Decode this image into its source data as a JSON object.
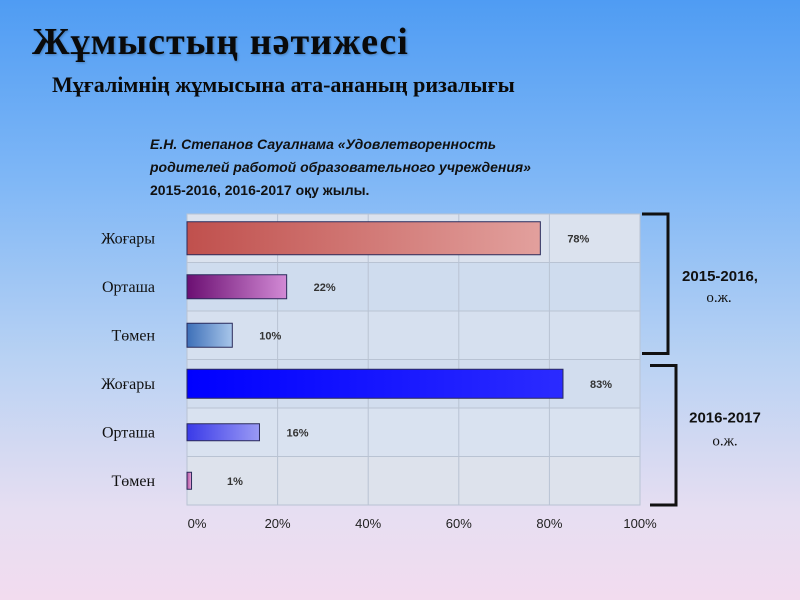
{
  "page": {
    "title": "Жұмыстың нәтижесі",
    "subtitle": "Мұғалімнің жұмысына ата-ананың  ризалығы",
    "source_lines": [
      "Е.Н. Степанов  Сауалнама «Удовлетворенность",
      "родителей работой образовательного учреждения»",
      "2015-2016, 2016-2017  оқу жылы."
    ]
  },
  "chart_data": {
    "type": "bar",
    "orientation": "horizontal",
    "xlim": [
      0,
      100
    ],
    "ticks": [
      "0%",
      "20%",
      "40%",
      "60%",
      "80%",
      "100%"
    ],
    "grid": true,
    "groups": [
      {
        "label": "2015-2016,",
        "sublabel": "о.ж.",
        "bars": [
          {
            "category": "Жоғары",
            "value": 78,
            "label": "78%",
            "color_from": "#c0504d",
            "color_to": "#e2a09d"
          },
          {
            "category": "Орташа",
            "value": 22,
            "label": "22%",
            "color_from": "#6b0f72",
            "color_to": "#d28ad5"
          },
          {
            "category": "Төмен",
            "value": 10,
            "label": "10%",
            "color_from": "#3d6fb8",
            "color_to": "#a8c6ea"
          }
        ]
      },
      {
        "label": "2016-2017",
        "sublabel": "о.ж.",
        "bars": [
          {
            "category": "Жоғары",
            "value": 83,
            "label": "83%",
            "color_from": "#0000ff",
            "color_to": "#2b2bff"
          },
          {
            "category": "Орташа",
            "value": 16,
            "label": "16%",
            "color_from": "#3a3ae8",
            "color_to": "#9a9af5"
          },
          {
            "category": "Төмен",
            "value": 1,
            "label": "1%",
            "color_from": "#b04f9e",
            "color_to": "#e8a9dc"
          }
        ]
      }
    ]
  }
}
